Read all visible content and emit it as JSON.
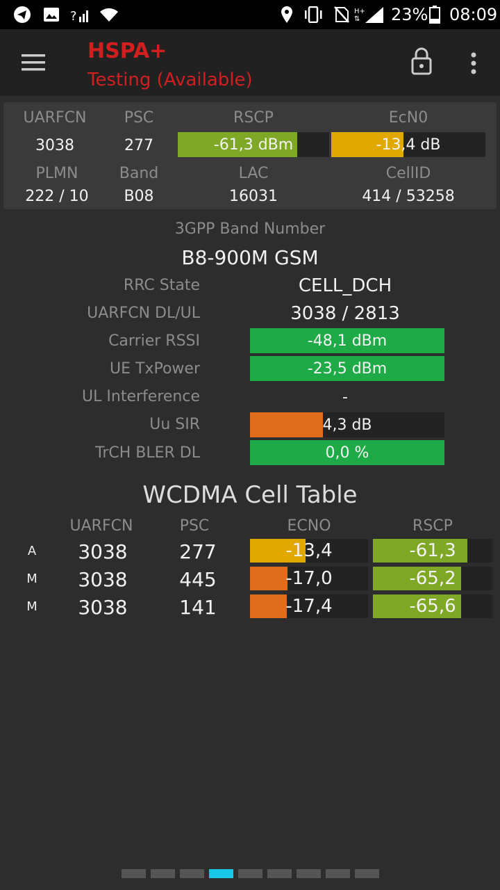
{
  "status_bar": {
    "battery_pct": "23%",
    "time": "08:09",
    "icons": [
      "telegram-icon",
      "image-icon",
      "signal-unknown-icon",
      "wifi-icon",
      "location-icon",
      "vibrate-icon",
      "no-sim-icon",
      "hplus-signal-icon",
      "battery-icon"
    ]
  },
  "toolbar": {
    "title": "HSPA+",
    "subtitle": "Testing (Available)",
    "menu_icon": "menu-icon",
    "lock_icon": "lock-icon",
    "more_icon": "more-vert-icon"
  },
  "summary": {
    "labels": {
      "uarfcn": "UARFCN",
      "psc": "PSC",
      "rscp": "RSCP",
      "ecn0": "EcN0",
      "plmn": "PLMN",
      "band": "Band",
      "lac": "LAC",
      "cellid": "CellID"
    },
    "uarfcn": "3038",
    "psc": "277",
    "rscp": {
      "text": "-61,3 dBm",
      "level": 0.79
    },
    "ecn0": {
      "text": "-13,4 dB",
      "level": 0.47
    },
    "plmn": "222 / 10",
    "band": "B08",
    "lac": "16031",
    "cellid": "414 / 53258"
  },
  "details": {
    "band_number_label": "3GPP Band Number",
    "band_number_value": "B8-900M GSM",
    "rows": [
      {
        "label": "RRC State",
        "value": "CELL_DCH"
      },
      {
        "label": "UARFCN DL/UL",
        "value": "3038 / 2813"
      },
      {
        "label": "Carrier RSSI",
        "value": "-48,1 dBm",
        "level": 1.0
      },
      {
        "label": "UE TxPower",
        "value": "-23,5 dBm",
        "level": 1.0
      },
      {
        "label": "UL Interference",
        "value": "-"
      },
      {
        "label": "Uu SIR",
        "value": "4,3 dB",
        "level": 0.375
      },
      {
        "label": "TrCH BLER DL",
        "value": "0,0 %",
        "level": 1.0
      }
    ]
  },
  "cell_table": {
    "title": "WCDMA Cell Table",
    "headers": [
      "UARFCN",
      "PSC",
      "ECNO",
      "RSCP"
    ],
    "rows": [
      {
        "type": "A",
        "uarfcn": "3038",
        "psc": "277",
        "ecno": "-13,4",
        "ecno_level": 0.47,
        "rscp": "-61,3",
        "rscp_level": 0.79
      },
      {
        "type": "M",
        "uarfcn": "3038",
        "psc": "445",
        "ecno": "-17,0",
        "ecno_level": 0.32,
        "rscp": "-65,2",
        "rscp_level": 0.74
      },
      {
        "type": "M",
        "uarfcn": "3038",
        "psc": "141",
        "ecno": "-17,4",
        "ecno_level": 0.31,
        "rscp": "-65,6",
        "rscp_level": 0.74
      }
    ]
  },
  "pager": {
    "count": 9,
    "active": 3
  },
  "colors": {
    "green": "#1faa48",
    "lime": "#7fa826",
    "amber": "#e0a800",
    "orange": "#e06d1c",
    "title_red": "#d11f1f",
    "accent": "#18c6e8"
  }
}
